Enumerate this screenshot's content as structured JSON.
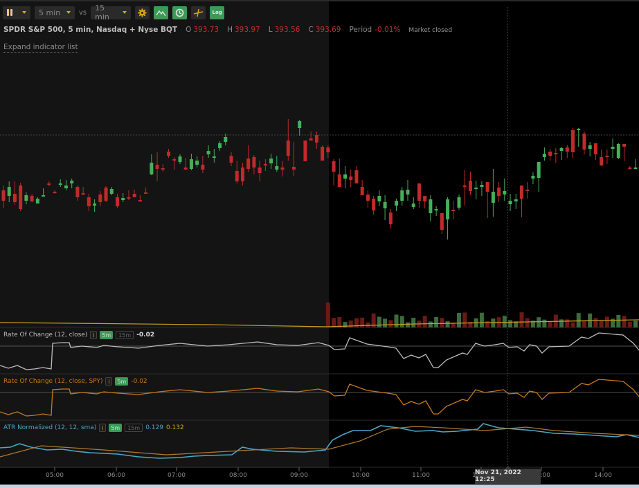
{
  "toolbar": {
    "chart_type_icon": "candlestick-icon",
    "interval": "5 min",
    "vs_label": "vs",
    "compare_interval": "15 min",
    "buttons": [
      {
        "name": "settings-button",
        "icon": "gear-icon"
      },
      {
        "name": "line-drawing-button",
        "icon": "chart-line-icon"
      },
      {
        "name": "clock-button",
        "icon": "clock-icon"
      },
      {
        "name": "crosshair-button",
        "icon": "crosshair-icon"
      },
      {
        "name": "log-scale-button",
        "icon": "log-icon",
        "label": "Log"
      }
    ]
  },
  "header": {
    "instrument": "SPDR S&P 500, 5 min, Nasdaq + Nyse BQT",
    "open_label": "O",
    "open": "393.73",
    "high_label": "H",
    "high": "393.97",
    "low_label": "L",
    "low": "393.56",
    "close_label": "C",
    "close": "393.69",
    "period_label": "Period",
    "period": "-0.01%",
    "status": "Market closed"
  },
  "expand_link": "Expand indicator list",
  "indicators": [
    {
      "name": "Rate Of Change (12, close)",
      "color": "#bdbdbd",
      "pills": [
        "5m",
        "15m"
      ],
      "value": "-0.02"
    },
    {
      "name": "Rate Of Change (12, close, SPY)",
      "color": "#c77a1a",
      "pills": [
        "5m"
      ],
      "value": "-0.02"
    },
    {
      "name": "ATR Normalized (12, 12, sma)",
      "color": "#4aa8c8",
      "pills": [
        "5m",
        "15m"
      ],
      "value": "0.129",
      "value2": "0.132"
    }
  ],
  "xaxis": {
    "ticks": [
      "05:00",
      "06:00",
      "07:00",
      "08:00",
      "09:00",
      "10:00",
      "11:00",
      "12:00",
      "13:00",
      "14:00"
    ]
  },
  "crosshair": {
    "label": "Nov 21, 2022 12:25"
  },
  "colors": {
    "up": "#45b05a",
    "down": "#c22a2a",
    "vol_up": "#3d6b3c",
    "vol_down": "#6b1a14",
    "vol_ma": "#c8a020",
    "roc": "#bdbdbd",
    "roc_spy": "#c77a1a",
    "atr": "#4aa8c8",
    "atr_ma": "#b07a30"
  },
  "chart_data": {
    "type": "candlestick",
    "title": "SPDR S&P 500, 5 min, Nasdaq + Nyse BQT",
    "x_ticks": [
      "05:00",
      "06:00",
      "07:00",
      "08:00",
      "09:00",
      "10:00",
      "11:00",
      "12:00",
      "13:00",
      "14:00"
    ],
    "regular_session_start_x": 475,
    "candles_y": [
      [
        275,
        290,
        268,
        300
      ],
      [
        283,
        270,
        262,
        292
      ],
      [
        280,
        292,
        262,
        296
      ],
      [
        268,
        302,
        264,
        305
      ],
      [
        290,
        282,
        278,
        295
      ],
      [
        283,
        291,
        280,
        292
      ],
      [
        294,
        287,
        285,
        294
      ],
      [
        283,
        282,
        272,
        283
      ],
      [
        265,
        266,
        262,
        269
      ],
      [
        277,
        278,
        275,
        280
      ],
      [
        266,
        265,
        259,
        270
      ],
      [
        272,
        268,
        260,
        275
      ],
      [
        265,
        261,
        258,
        272
      ],
      [
        270,
        285,
        268,
        290
      ],
      [
        279,
        280,
        270,
        282
      ],
      [
        285,
        298,
        280,
        305
      ],
      [
        297,
        294,
        288,
        306
      ],
      [
        281,
        292,
        276,
        298
      ],
      [
        271,
        290,
        269,
        292
      ],
      [
        280,
        273,
        270,
        282
      ],
      [
        285,
        298,
        280,
        300
      ],
      [
        289,
        286,
        279,
        292
      ],
      [
        285,
        287,
        275,
        289
      ],
      [
        280,
        285,
        274,
        282
      ],
      [
        289,
        290,
        282,
        292
      ],
      [
        278,
        279,
        271,
        280
      ],
      [
        252,
        235,
        223,
        253
      ],
      [
        238,
        244,
        220,
        262
      ],
      [
        243,
        243,
        237,
        248
      ],
      [
        219,
        225,
        215,
        228
      ],
      [
        230,
        231,
        227,
        245
      ],
      [
        234,
        226,
        223,
        237
      ],
      [
        242,
        245,
        228,
        244
      ],
      [
        244,
        230,
        222,
        246
      ],
      [
        238,
        232,
        226,
        242
      ],
      [
        238,
        245,
        225,
        250
      ],
      [
        223,
        218,
        210,
        228
      ],
      [
        227,
        226,
        215,
        235
      ],
      [
        214,
        207,
        204,
        218
      ],
      [
        205,
        198,
        193,
        210
      ],
      [
        225,
        235,
        220,
        240
      ],
      [
        247,
        262,
        232,
        265
      ],
      [
        242,
        262,
        235,
        268
      ],
      [
        229,
        244,
        210,
        248
      ],
      [
        227,
        242,
        224,
        252
      ],
      [
        242,
        250,
        232,
        262
      ],
      [
        237,
        237,
        230,
        247
      ],
      [
        236,
        229,
        222,
        244
      ],
      [
        245,
        240,
        225,
        248
      ],
      [
        242,
        245,
        233,
        255
      ],
      [
        203,
        225,
        172,
        232
      ],
      [
        241,
        245,
        205,
        254
      ],
      [
        185,
        175,
        173,
        196
      ],
      [
        203,
        233,
        208,
        210
      ],
      [
        200,
        203,
        190,
        195
      ],
      [
        195,
        206,
        190,
        215
      ],
      [
        212,
        232,
        210,
        230
      ],
      [
        213,
        220,
        210,
        228
      ],
      [
        233,
        248,
        230,
        268
      ],
      [
        252,
        270,
        229,
        265
      ],
      [
        258,
        252,
        240,
        272
      ],
      [
        255,
        260,
        245,
        270
      ],
      [
        246,
        265,
        240,
        265
      ],
      [
        270,
        282,
        260,
        280
      ],
      [
        281,
        290,
        275,
        300
      ],
      [
        287,
        304,
        283,
        310
      ],
      [
        291,
        283,
        275,
        298
      ],
      [
        301,
        292,
        282,
        318
      ],
      [
        307,
        324,
        302,
        330
      ],
      [
        297,
        290,
        287,
        305
      ],
      [
        290,
        275,
        270,
        297
      ],
      [
        281,
        274,
        260,
        290
      ],
      [
        299,
        294,
        285,
        302
      ],
      [
        265,
        290,
        265,
        300
      ],
      [
        283,
        291,
        283,
        301
      ],
      [
        308,
        288,
        282,
        320
      ],
      [
        304,
        302,
        298,
        312
      ],
      [
        308,
        332,
        307,
        338
      ],
      [
        317,
        288,
        285,
        346
      ],
      [
        303,
        305,
        290,
        317
      ],
      [
        300,
        285,
        281,
        303
      ],
      [
        268,
        270,
        246,
        297
      ],
      [
        261,
        276,
        248,
        282
      ],
      [
        273,
        271,
        261,
        288
      ],
      [
        270,
        267,
        262,
        283
      ],
      [
        263,
        277,
        265,
        315
      ],
      [
        293,
        277,
        244,
        313
      ],
      [
        271,
        283,
        263,
        292
      ],
      [
        281,
        276,
        258,
        290
      ],
      [
        295,
        290,
        280,
        305
      ],
      [
        291,
        288,
        280,
        302
      ],
      [
        268,
        287,
        283,
        314
      ],
      [
        274,
        276,
        263,
        287
      ],
      [
        258,
        254,
        249,
        266
      ],
      [
        257,
        234,
        235,
        277
      ],
      [
        227,
        222,
        213,
        232
      ],
      [
        219,
        225,
        215,
        232
      ],
      [
        221,
        223,
        214,
        236
      ],
      [
        218,
        214,
        212,
        231
      ],
      [
        213,
        219,
        209,
        228
      ],
      [
        188,
        220,
        185,
        228
      ],
      [
        188,
        186,
        185,
        212
      ],
      [
        193,
        216,
        190,
        223
      ],
      [
        215,
        210,
        205,
        226
      ],
      [
        207,
        223,
        210,
        231
      ],
      [
        227,
        239,
        216,
        240
      ],
      [
        225,
        226,
        216,
        237
      ],
      [
        215,
        212,
        200,
        228
      ],
      [
        228,
        208,
        207,
        230
      ],
      [
        208,
        212,
        212,
        233
      ],
      [
        242,
        243,
        240,
        245
      ],
      [
        243,
        242,
        230,
        240
      ]
    ]
  }
}
